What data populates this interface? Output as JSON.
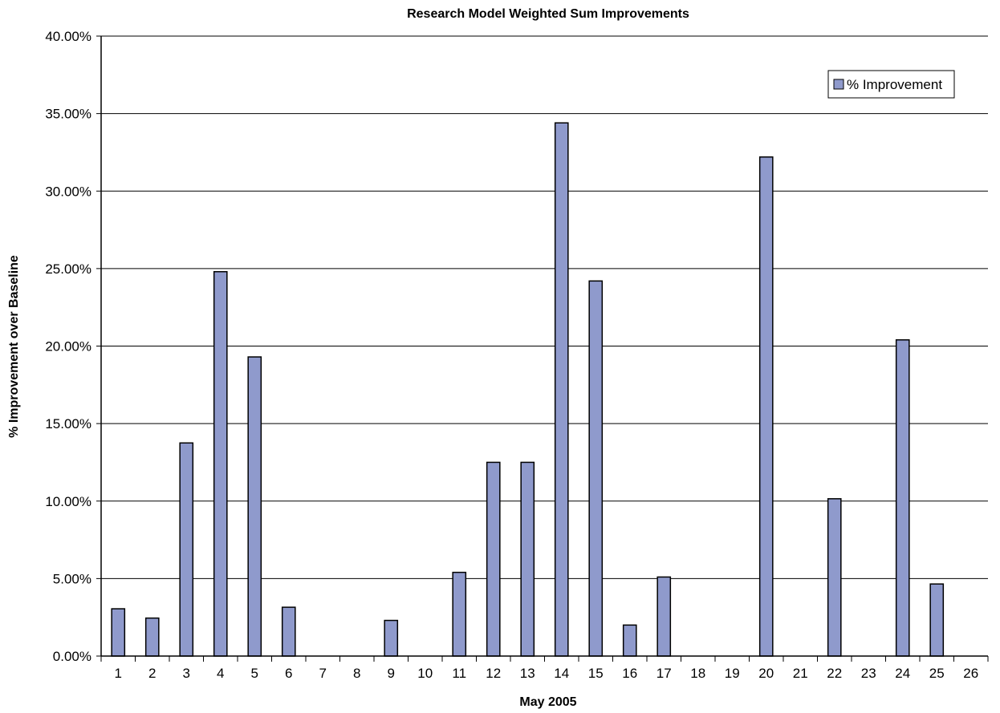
{
  "chart_data": {
    "type": "bar",
    "title": "Research Model Weighted Sum Improvements",
    "xlabel": "May 2005",
    "ylabel": "% Improvement over Baseline",
    "categories": [
      "1",
      "2",
      "3",
      "4",
      "5",
      "6",
      "7",
      "8",
      "9",
      "10",
      "11",
      "12",
      "13",
      "14",
      "15",
      "16",
      "17",
      "18",
      "19",
      "20",
      "21",
      "22",
      "23",
      "24",
      "25",
      "26"
    ],
    "series": [
      {
        "name": "% Improvement",
        "color": "#8f9acc",
        "values": [
          3.05,
          2.45,
          13.75,
          24.8,
          19.3,
          3.15,
          0,
          0,
          2.3,
          0,
          5.4,
          12.5,
          12.5,
          34.4,
          24.2,
          2.0,
          5.1,
          0,
          0,
          32.2,
          0,
          10.15,
          0,
          20.4,
          4.65,
          0
        ]
      }
    ],
    "ylim": [
      0,
      40
    ],
    "yticks": [
      "0.00%",
      "5.00%",
      "10.00%",
      "15.00%",
      "20.00%",
      "25.00%",
      "30.00%",
      "35.00%",
      "40.00%"
    ],
    "grid": true,
    "legend_position": "top-right"
  }
}
